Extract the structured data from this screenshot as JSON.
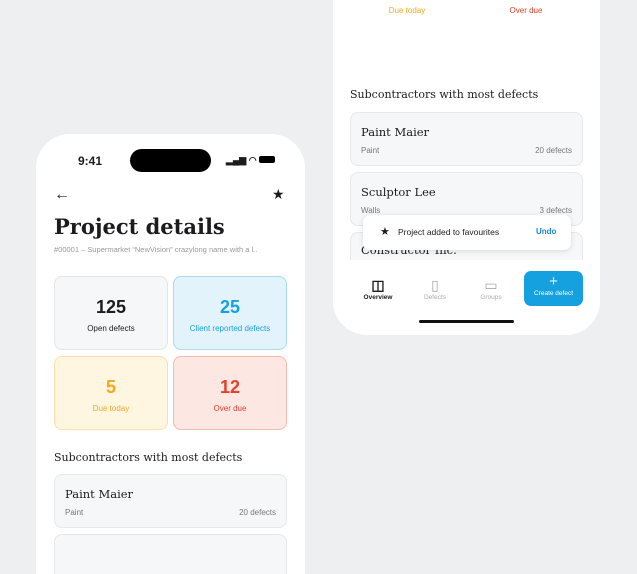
{
  "status_bar": {
    "time": "9:41"
  },
  "header": {
    "title": "Project details",
    "subtitle": "#00001 – Supermarket “NewVision” crazylong name with a l.."
  },
  "stats": [
    {
      "value": "125",
      "label": "Open defects"
    },
    {
      "value": "25",
      "label": "Client reported defects"
    },
    {
      "value": "5",
      "label": "Due today"
    },
    {
      "value": "12",
      "label": "Over due"
    }
  ],
  "section_title": "Subcontractors with most defects",
  "subcontractors": [
    {
      "name": "Paint Maier",
      "category": "Paint",
      "count": "20 defects"
    },
    {
      "name": "Sculptor Lee",
      "category": "Walls",
      "count": "3 defects"
    },
    {
      "name": "Constructor Inc."
    }
  ],
  "toast": {
    "message": "Project added to favourites",
    "action": "Undo"
  },
  "tabs": [
    {
      "label": "Overview"
    },
    {
      "label": "Defects"
    },
    {
      "label": "Groups"
    }
  ],
  "create_button": "Create defect",
  "colors": {
    "accent": "#15a0e0",
    "due": "#f4a81c",
    "overdue": "#e5402a"
  }
}
